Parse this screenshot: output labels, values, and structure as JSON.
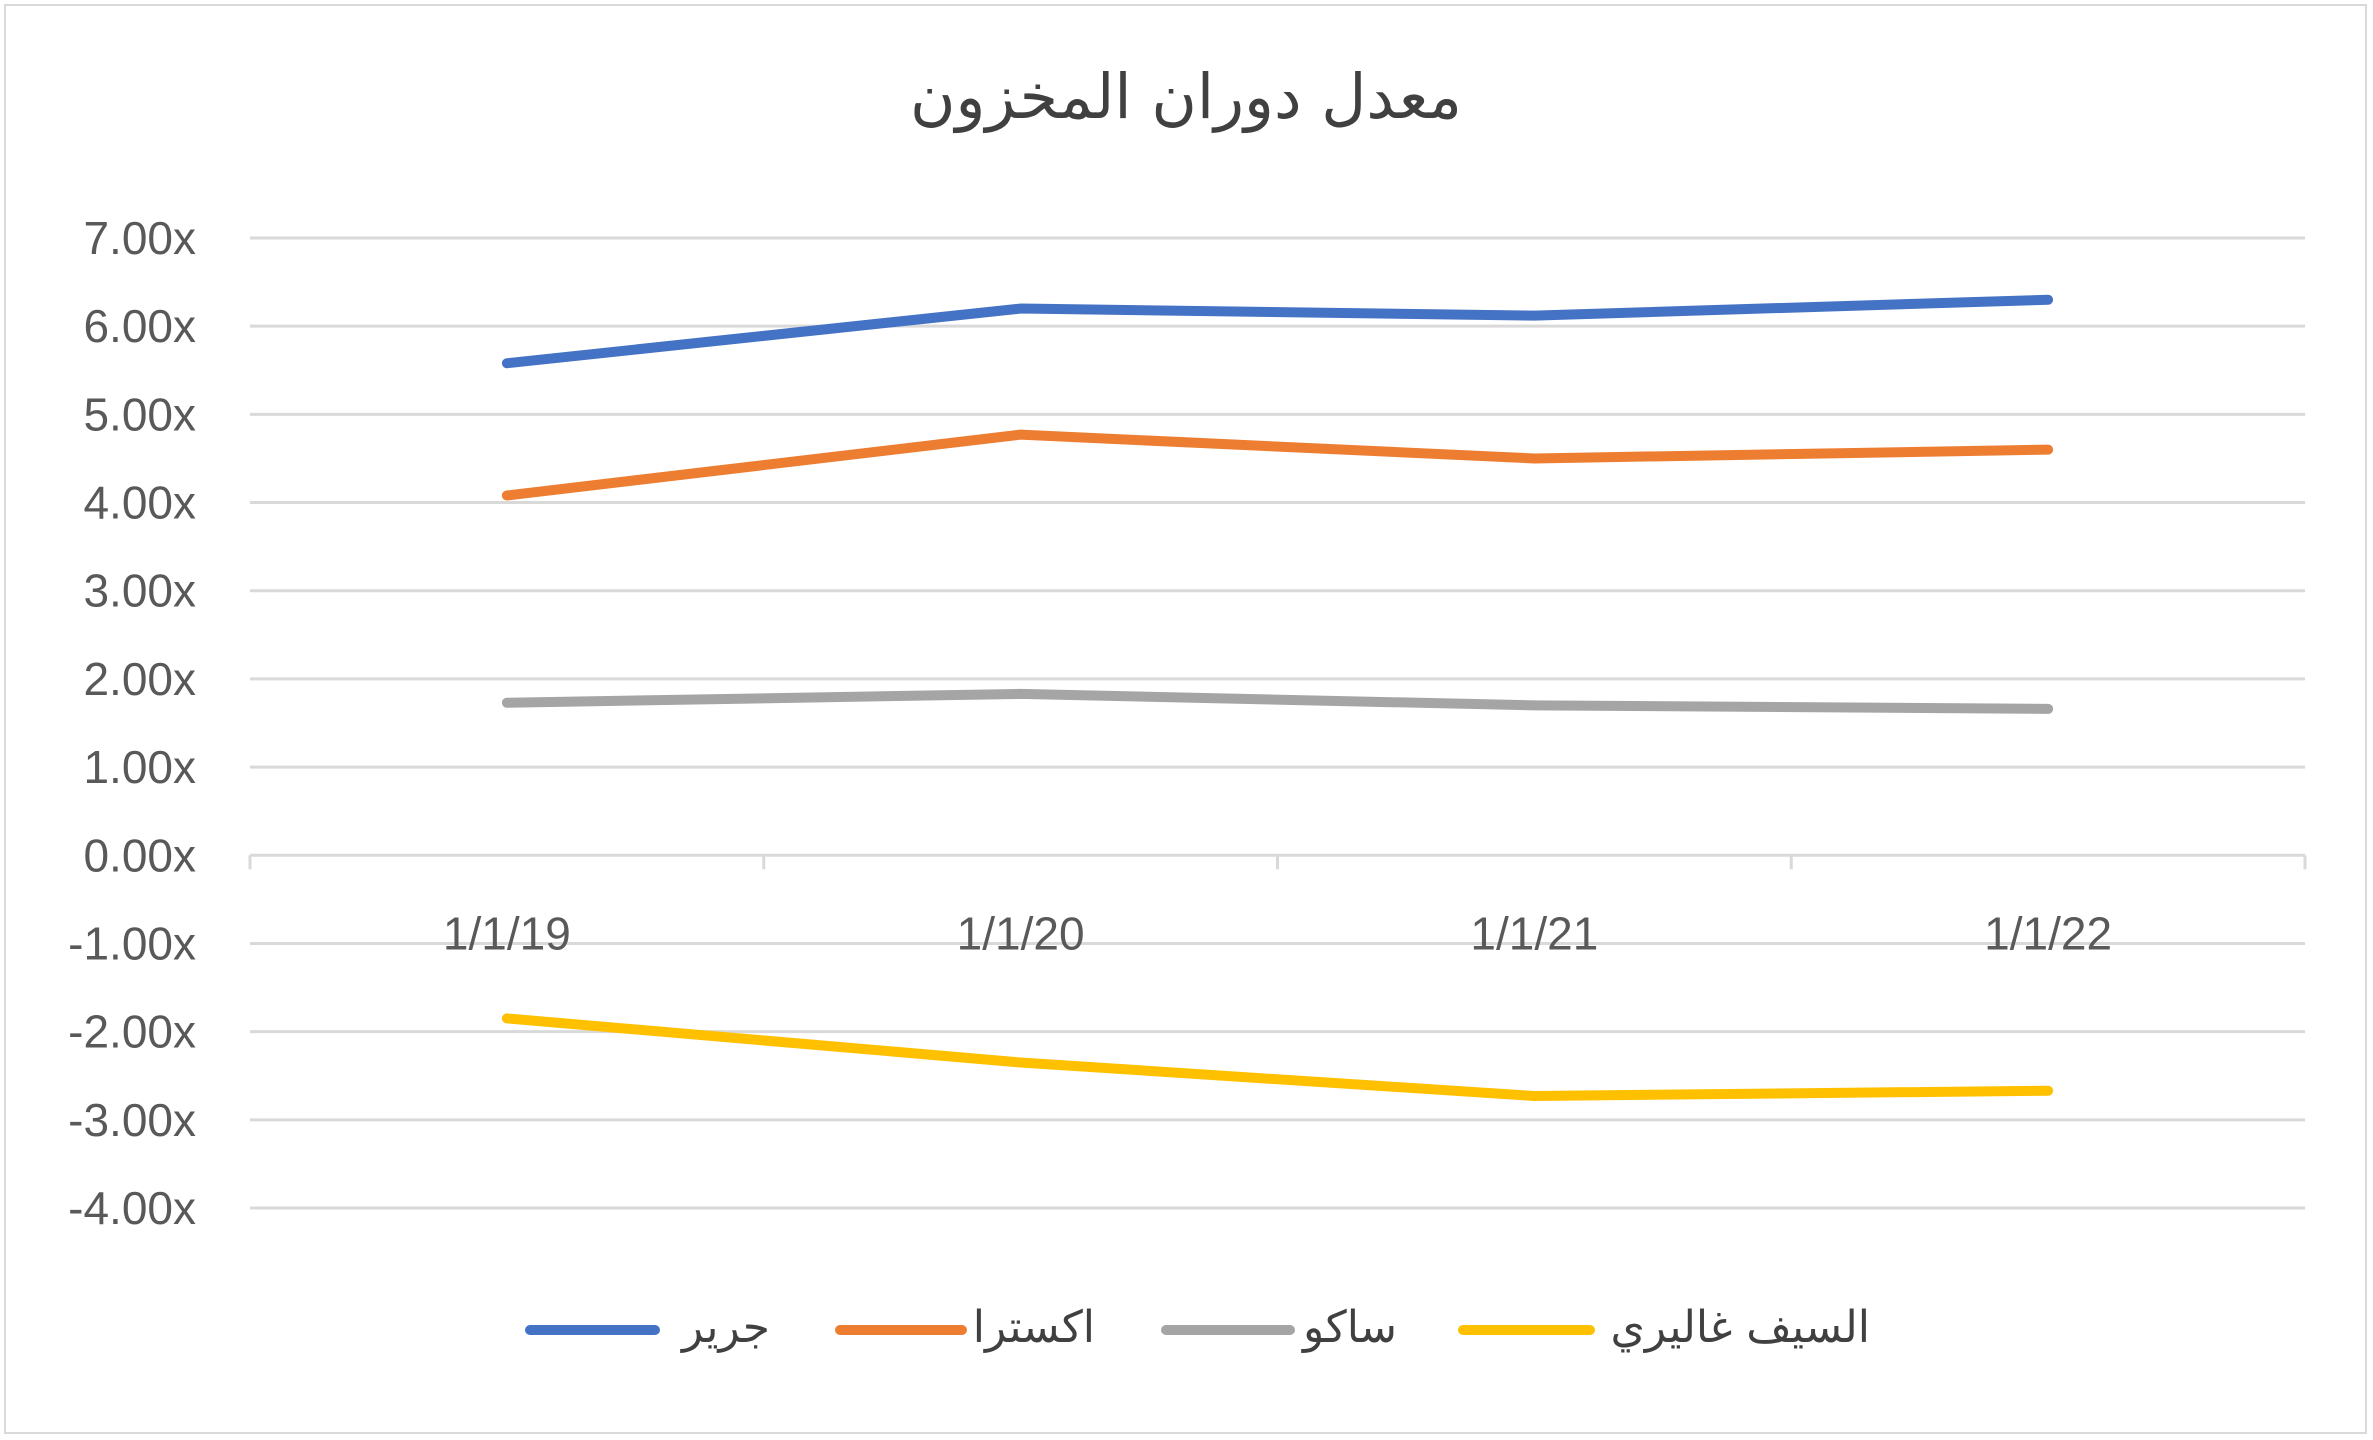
{
  "chart_data": {
    "type": "line",
    "title": "معدل دوران المخزون",
    "xlabel": "",
    "ylabel": "",
    "categories": [
      "1/1/19",
      "1/1/20",
      "1/1/21",
      "1/1/22"
    ],
    "ylim": [
      -4,
      7
    ],
    "y_ticks": [
      "7.00x",
      "6.00x",
      "5.00x",
      "4.00x",
      "3.00x",
      "2.00x",
      "1.00x",
      "0.00x",
      "-1.00x",
      "-2.00x",
      "-3.00x",
      "-4.00x"
    ],
    "grid": true,
    "legend_position": "bottom",
    "series": [
      {
        "name": "جرير",
        "color": "#4472C4",
        "values": [
          5.58,
          6.2,
          6.12,
          6.3
        ]
      },
      {
        "name": "اكسترا",
        "color": "#ED7D31",
        "values": [
          4.08,
          4.77,
          4.5,
          4.6
        ]
      },
      {
        "name": "ساكو",
        "color": "#A5A5A5",
        "values": [
          1.73,
          1.83,
          1.7,
          1.66
        ]
      },
      {
        "name": "السيف غاليري",
        "color": "#FFC000",
        "values": [
          -1.85,
          -2.35,
          -2.73,
          -2.67
        ]
      }
    ]
  }
}
